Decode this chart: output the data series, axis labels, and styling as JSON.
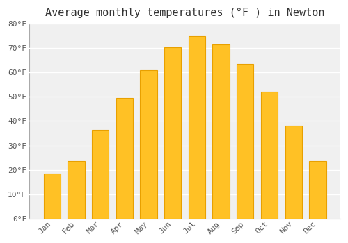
{
  "title": "Average monthly temperatures (°F ) in Newton",
  "months": [
    "Jan",
    "Feb",
    "Mar",
    "Apr",
    "May",
    "Jun",
    "Jul",
    "Aug",
    "Sep",
    "Oct",
    "Nov",
    "Dec"
  ],
  "temperatures": [
    18.5,
    23.5,
    36.5,
    49.5,
    61.0,
    70.5,
    75.0,
    71.5,
    63.5,
    52.0,
    38.0,
    23.5
  ],
  "bar_color": "#FFC125",
  "bar_edge_color": "#E8A000",
  "background_color": "#FFFFFF",
  "plot_bg_color": "#F0F0F0",
  "grid_color": "#FFFFFF",
  "ylim": [
    0,
    80
  ],
  "yticks": [
    0,
    10,
    20,
    30,
    40,
    50,
    60,
    70,
    80
  ],
  "title_fontsize": 11,
  "tick_fontsize": 8,
  "font_family": "monospace"
}
